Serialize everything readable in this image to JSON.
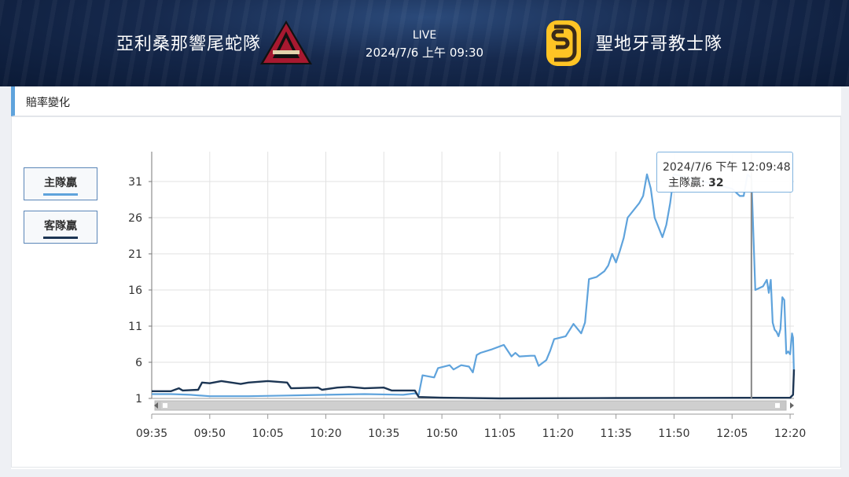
{
  "header": {
    "home_team": "亞利桑那響尾蛇隊",
    "away_team": "聖地牙哥教士隊",
    "status": "LIVE",
    "datetime": "2024/7/6 上午 09:30",
    "home_logo": "diamondbacks-a-logo",
    "away_logo": "padres-sd-logo"
  },
  "panel": {
    "title": "賠率變化"
  },
  "legend": {
    "home": {
      "label": "主隊贏",
      "color": "#5fa3dc"
    },
    "away": {
      "label": "客隊贏",
      "color": "#1c3553"
    }
  },
  "tooltip": {
    "time": "2024/7/6 下午 12:09:48",
    "series": "主隊贏:",
    "value": "32"
  },
  "chart_data": {
    "type": "line",
    "x_unit": "time (HH:MM)",
    "xlim": [
      "09:35",
      "12:21"
    ],
    "ylim": [
      0,
      35
    ],
    "x_ticks": [
      "09:35",
      "09:50",
      "10:05",
      "10:20",
      "10:35",
      "10:50",
      "11:05",
      "11:20",
      "11:35",
      "11:50",
      "12:05",
      "12:20"
    ],
    "y_ticks": [
      1,
      6,
      11,
      16,
      21,
      26,
      31
    ],
    "grid": true,
    "crosshair_time": "12:10",
    "series": [
      {
        "name": "主隊贏",
        "color": "#5fa3dc",
        "points": [
          [
            "09:35",
            1.6
          ],
          [
            "09:40",
            1.6
          ],
          [
            "09:45",
            1.5
          ],
          [
            "09:50",
            1.3
          ],
          [
            "10:00",
            1.3
          ],
          [
            "10:10",
            1.4
          ],
          [
            "10:20",
            1.5
          ],
          [
            "10:30",
            1.6
          ],
          [
            "10:40",
            1.5
          ],
          [
            "10:43",
            1.7
          ],
          [
            "10:44",
            1.5
          ],
          [
            "10:45",
            4.2
          ],
          [
            "10:48",
            3.9
          ],
          [
            "10:49",
            5.2
          ],
          [
            "10:52",
            5.6
          ],
          [
            "10:53",
            5.0
          ],
          [
            "10:55",
            5.6
          ],
          [
            "10:57",
            5.4
          ],
          [
            "10:58",
            4.6
          ],
          [
            "10:59",
            7.0
          ],
          [
            "11:00",
            7.3
          ],
          [
            "11:03",
            7.8
          ],
          [
            "11:06",
            8.4
          ],
          [
            "11:08",
            6.8
          ],
          [
            "11:09",
            7.3
          ],
          [
            "11:10",
            6.8
          ],
          [
            "11:13",
            6.9
          ],
          [
            "11:14",
            6.9
          ],
          [
            "11:15",
            5.5
          ],
          [
            "11:16",
            5.9
          ],
          [
            "11:17",
            6.3
          ],
          [
            "11:18",
            7.6
          ],
          [
            "11:19",
            9.2
          ],
          [
            "11:22",
            9.6
          ],
          [
            "11:24",
            11.3
          ],
          [
            "11:26",
            10.0
          ],
          [
            "11:27",
            11.5
          ],
          [
            "11:28",
            17.5
          ],
          [
            "11:30",
            17.8
          ],
          [
            "11:32",
            18.6
          ],
          [
            "11:33",
            19.4
          ],
          [
            "11:34",
            21.0
          ],
          [
            "11:35",
            19.8
          ],
          [
            "11:36",
            21.4
          ],
          [
            "11:37",
            23.2
          ],
          [
            "11:38",
            26.0
          ],
          [
            "11:41",
            28.0
          ],
          [
            "11:42",
            29.0
          ],
          [
            "11:43",
            32.0
          ],
          [
            "11:44",
            30.0
          ],
          [
            "11:45",
            26.0
          ],
          [
            "11:47",
            23.3
          ],
          [
            "11:48",
            25.0
          ],
          [
            "11:49",
            28.0
          ],
          [
            "11:50",
            32.0
          ],
          [
            "12:05",
            30.0
          ],
          [
            "12:07",
            29.0
          ],
          [
            "12:08",
            29.0
          ],
          [
            "12:09",
            32.0
          ],
          [
            "12:10",
            31.5
          ],
          [
            "12:11",
            16.0
          ],
          [
            "12:13",
            16.5
          ],
          [
            "12:14",
            17.4
          ],
          [
            "12:14:30",
            15.6
          ],
          [
            "12:15",
            17.4
          ],
          [
            "12:15:30",
            11.5
          ],
          [
            "12:16",
            10.5
          ],
          [
            "12:16:30",
            10.2
          ],
          [
            "12:17",
            9.6
          ],
          [
            "12:17:30",
            10.6
          ],
          [
            "12:18",
            15.0
          ],
          [
            "12:18:30",
            14.6
          ],
          [
            "12:19",
            7.2
          ],
          [
            "12:19:30",
            7.5
          ],
          [
            "12:20",
            7.1
          ],
          [
            "12:20:30",
            10.0
          ],
          [
            "12:20:45",
            9.4
          ],
          [
            "12:21",
            4.2
          ]
        ]
      },
      {
        "name": "客隊贏",
        "color": "#1c3553",
        "points": [
          [
            "09:35",
            2.0
          ],
          [
            "09:40",
            2.0
          ],
          [
            "09:42",
            2.4
          ],
          [
            "09:43",
            2.1
          ],
          [
            "09:47",
            2.2
          ],
          [
            "09:48",
            3.2
          ],
          [
            "09:50",
            3.1
          ],
          [
            "09:53",
            3.4
          ],
          [
            "09:58",
            3.0
          ],
          [
            "10:00",
            3.2
          ],
          [
            "10:05",
            3.4
          ],
          [
            "10:10",
            3.2
          ],
          [
            "10:11",
            2.4
          ],
          [
            "10:18",
            2.5
          ],
          [
            "10:19",
            2.2
          ],
          [
            "10:23",
            2.5
          ],
          [
            "10:26",
            2.6
          ],
          [
            "10:30",
            2.4
          ],
          [
            "10:35",
            2.5
          ],
          [
            "10:37",
            2.1
          ],
          [
            "10:43",
            2.1
          ],
          [
            "10:44",
            1.2
          ],
          [
            "10:50",
            1.1
          ],
          [
            "11:05",
            1.0
          ],
          [
            "11:35",
            1.05
          ],
          [
            "12:20",
            1.1
          ],
          [
            "12:20:45",
            1.5
          ],
          [
            "12:21",
            5.0
          ]
        ]
      }
    ]
  }
}
